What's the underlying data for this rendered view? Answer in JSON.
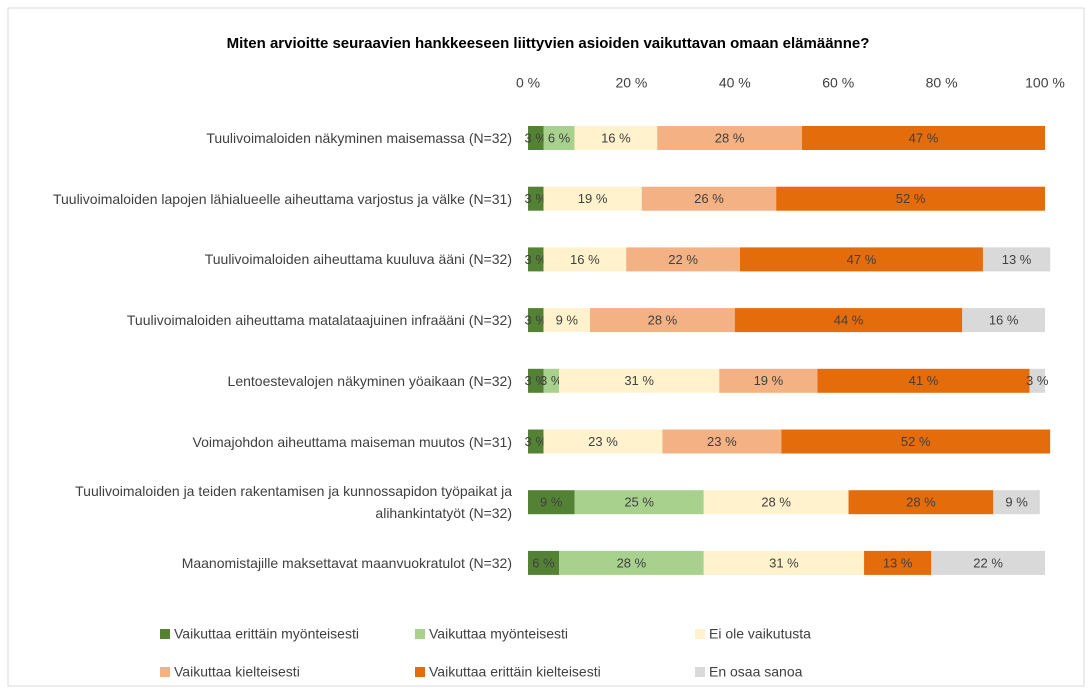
{
  "chart_data": {
    "type": "stacked-bar-horizontal",
    "title": "Miten arvioitte seuraavien hankkeeseen liittyvien asioiden vaikuttavan omaan elämäänne?",
    "categories": [
      "Tuulivoimaloiden näkyminen maisemassa (N=32)",
      "Tuulivoimaloiden lapojen lähialueelle aiheuttama varjostus ja välke (N=31)",
      "Tuulivoimaloiden aiheuttama kuuluva ääni (N=32)",
      "Tuulivoimaloiden aiheuttama matalataajuinen infraääni (N=32)",
      "Lentoestevalojen näkyminen yöaikaan (N=32)",
      "Voimajohdon aiheuttama maiseman muutos (N=31)",
      "Tuulivoimaloiden ja teiden rakentamisen ja kunnossapidon työpaikat ja alihankintatyöt (N=32)",
      "Maanomistajille maksettavat maanvuokratulot (N=32)"
    ],
    "series": [
      {
        "name": "Vaikuttaa erittäin myönteisesti",
        "color": "#548235",
        "values": [
          3,
          3,
          3,
          3,
          3,
          3,
          9,
          6
        ],
        "value_labels": [
          "3 %",
          "3 %",
          "3 %",
          "3 %",
          "3 %",
          "3 %",
          "9 %",
          "6 %"
        ]
      },
      {
        "name": "Vaikuttaa myönteisesti",
        "color": "#a9d18e",
        "values": [
          6,
          0,
          0,
          0,
          3,
          0,
          25,
          28
        ],
        "value_labels": [
          "6 %",
          null,
          null,
          null,
          "3 %",
          null,
          "25 %",
          "28 %"
        ]
      },
      {
        "name": "Ei ole vaikutusta",
        "color": "#fff2cc",
        "values": [
          16,
          19,
          16,
          9,
          31,
          23,
          28,
          31
        ],
        "value_labels": [
          "16 %",
          "19 %",
          "16 %",
          "9 %",
          "31 %",
          "23 %",
          "28 %",
          "31 %"
        ]
      },
      {
        "name": "Vaikuttaa kielteisesti",
        "color": "#f4b183",
        "values": [
          28,
          26,
          22,
          28,
          19,
          23,
          0,
          0
        ],
        "value_labels": [
          "28 %",
          "26 %",
          "22 %",
          "28 %",
          "19 %",
          "23 %",
          null,
          null
        ]
      },
      {
        "name": "Vaikuttaa erittäin kielteisesti",
        "color": "#e46c0a",
        "values": [
          47,
          52,
          47,
          44,
          41,
          52,
          28,
          13
        ],
        "value_labels": [
          "47 %",
          "52 %",
          "47 %",
          "44 %",
          "41 %",
          "52 %",
          "28 %",
          "13 %"
        ]
      },
      {
        "name": "En osaa sanoa",
        "color": "#d9d9d9",
        "values": [
          0,
          0,
          13,
          16,
          3,
          0,
          9,
          22
        ],
        "value_labels": [
          null,
          null,
          "13 %",
          "16 %",
          "3 %",
          null,
          "9 %",
          "22 %"
        ]
      }
    ],
    "xlim": [
      0,
      100
    ],
    "xticks": [
      {
        "value": 0,
        "label": "0 %"
      },
      {
        "value": 20,
        "label": "20 %"
      },
      {
        "value": 40,
        "label": "40 %"
      },
      {
        "value": 60,
        "label": "60 %"
      },
      {
        "value": 80,
        "label": "80 %"
      },
      {
        "value": 100,
        "label": "100 %"
      }
    ],
    "legend": "bottom"
  }
}
